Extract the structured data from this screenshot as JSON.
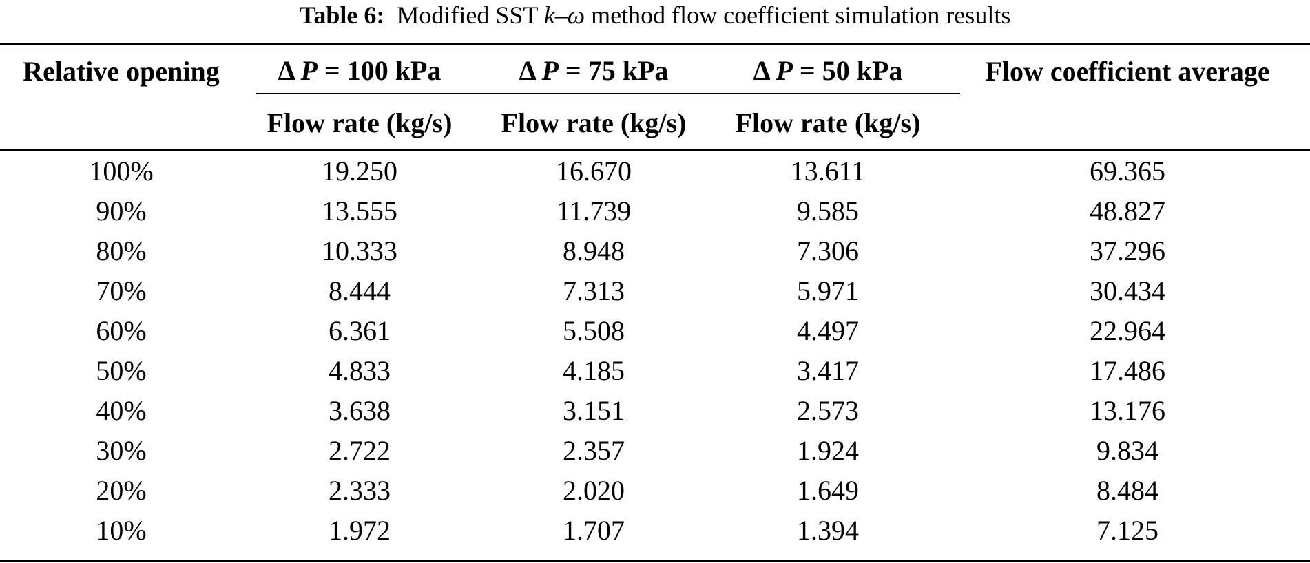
{
  "caption": {
    "label": "Table 6:",
    "text_pre": "Modified SST ",
    "text_k": "k",
    "text_dash": "–",
    "text_omega": "ω",
    "text_post": " method flow coefficient simulation results"
  },
  "header": {
    "relative_opening": "Relative opening",
    "groups": [
      {
        "delta": "Δ",
        "p": "P",
        "value": " = 100 kPa"
      },
      {
        "delta": "Δ",
        "p": "P",
        "value": " = 75 kPa"
      },
      {
        "delta": "Δ",
        "p": "P",
        "value": " = 50 kPa"
      }
    ],
    "sub_label": "Flow rate (kg/s)",
    "flow_coefficient_average": "Flow coefficient average"
  },
  "rows": [
    {
      "opening": "100%",
      "dp100": "19.250",
      "dp75": "16.670",
      "dp50": "13.611",
      "avg": "69.365"
    },
    {
      "opening": "90%",
      "dp100": "13.555",
      "dp75": "11.739",
      "dp50": "9.585",
      "avg": "48.827"
    },
    {
      "opening": "80%",
      "dp100": "10.333",
      "dp75": "8.948",
      "dp50": "7.306",
      "avg": "37.296"
    },
    {
      "opening": "70%",
      "dp100": "8.444",
      "dp75": "7.313",
      "dp50": "5.971",
      "avg": "30.434"
    },
    {
      "opening": "60%",
      "dp100": "6.361",
      "dp75": "5.508",
      "dp50": "4.497",
      "avg": "22.964"
    },
    {
      "opening": "50%",
      "dp100": "4.833",
      "dp75": "4.185",
      "dp50": "3.417",
      "avg": "17.486"
    },
    {
      "opening": "40%",
      "dp100": "3.638",
      "dp75": "3.151",
      "dp50": "2.573",
      "avg": "13.176"
    },
    {
      "opening": "30%",
      "dp100": "2.722",
      "dp75": "2.357",
      "dp50": "1.924",
      "avg": "9.834"
    },
    {
      "opening": "20%",
      "dp100": "2.333",
      "dp75": "2.020",
      "dp50": "1.649",
      "avg": "8.484"
    },
    {
      "opening": "10%",
      "dp100": "1.972",
      "dp75": "1.707",
      "dp50": "1.394",
      "avg": "7.125"
    }
  ]
}
